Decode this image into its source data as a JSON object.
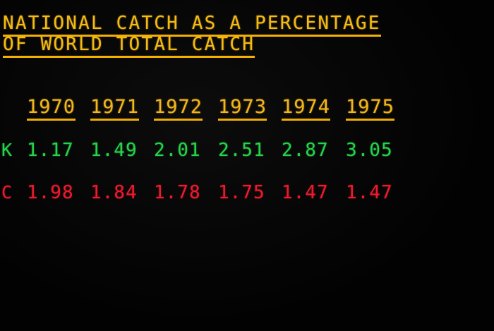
{
  "title": {
    "line1": "NATIONAL CATCH AS A PERCENTAGE",
    "line2": "OF WORLD TOTAL CATCH"
  },
  "table": {
    "years": [
      "1970",
      "1971",
      "1972",
      "1973",
      "1974",
      "1975"
    ],
    "rows": [
      {
        "label": "K",
        "color": "#25d44a",
        "values": [
          "1.17",
          "1.49",
          "2.01",
          "2.51",
          "2.87",
          "3.05"
        ]
      },
      {
        "label": "C",
        "color": "#ee1a2c",
        "values": [
          "1.98",
          "1.84",
          "1.78",
          "1.75",
          "1.47",
          "1.47"
        ]
      }
    ]
  },
  "colors": {
    "background": "#030303",
    "heading": "#f5bb12"
  }
}
